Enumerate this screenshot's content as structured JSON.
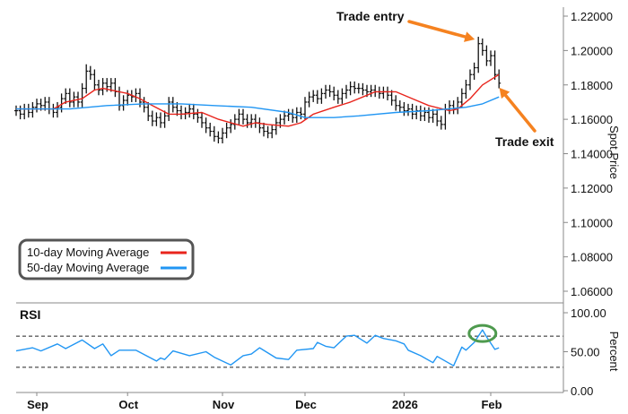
{
  "chart_data": [
    {
      "type": "ohlc-line",
      "yaxis_label": "Spot Price",
      "ylim": [
        1.06,
        1.22
      ],
      "yticks": [
        "1.22000",
        "1.20000",
        "1.18000",
        "1.16000",
        "1.14000",
        "1.12000",
        "1.10000",
        "1.08000",
        "1.06000"
      ],
      "ytick_values": [
        1.22,
        1.2,
        1.18,
        1.16,
        1.14,
        1.12,
        1.1,
        1.08,
        1.06
      ],
      "grid": false,
      "legend_placement": "bottom-left",
      "trading_days": {
        "2025-08": [
          25,
          26,
          27,
          28,
          29
        ],
        "2025-09": [
          1,
          2,
          3,
          4,
          5,
          8,
          9,
          10,
          11,
          12,
          15,
          16,
          17,
          18,
          19,
          22,
          23,
          24,
          25,
          26,
          29,
          30
        ],
        "2025-10": [
          1,
          2,
          3,
          6,
          7,
          8,
          9,
          10,
          13,
          14,
          15,
          16,
          17,
          20,
          21,
          22,
          23,
          24,
          27,
          28,
          29,
          30,
          31
        ],
        "2025-11": [
          3,
          4,
          5,
          6,
          7,
          10,
          11,
          12,
          13,
          14,
          17,
          18,
          19,
          20,
          21,
          24,
          25,
          26,
          27,
          28
        ],
        "2025-12": [
          1,
          2,
          3,
          4,
          5,
          8,
          9,
          10,
          11,
          12,
          15,
          16,
          17,
          18,
          19,
          22,
          23,
          24,
          25,
          26,
          29,
          30,
          31
        ],
        "2026-01": [
          1,
          2,
          5,
          6,
          7,
          8,
          9,
          12,
          13,
          14,
          15,
          16,
          19,
          20,
          21,
          22,
          23,
          26,
          27,
          28,
          29,
          30
        ],
        "2026-02": [
          2,
          3,
          4
        ]
      },
      "close": [
        1.165,
        1.163,
        1.166,
        1.164,
        1.167,
        1.169,
        1.168,
        1.17,
        1.166,
        1.164,
        1.167,
        1.172,
        1.175,
        1.17,
        1.173,
        1.17,
        1.178,
        1.188,
        1.186,
        1.18,
        1.177,
        1.181,
        1.179,
        1.181,
        1.176,
        1.168,
        1.171,
        1.174,
        1.173,
        1.175,
        1.17,
        1.167,
        1.162,
        1.159,
        1.161,
        1.158,
        1.162,
        1.17,
        1.167,
        1.165,
        1.163,
        1.164,
        1.166,
        1.163,
        1.161,
        1.158,
        1.155,
        1.153,
        1.15,
        1.149,
        1.152,
        1.155,
        1.157,
        1.16,
        1.163,
        1.16,
        1.158,
        1.16,
        1.158,
        1.155,
        1.153,
        1.152,
        1.154,
        1.158,
        1.16,
        1.162,
        1.163,
        1.161,
        1.164,
        1.163,
        1.17,
        1.173,
        1.174,
        1.172,
        1.175,
        1.177,
        1.176,
        1.174,
        1.172,
        1.175,
        1.177,
        1.179,
        1.178,
        1.178,
        1.177,
        1.176,
        1.177,
        1.176,
        1.175,
        1.176,
        1.174,
        1.171,
        1.168,
        1.167,
        1.165,
        1.166,
        1.163,
        1.165,
        1.162,
        1.164,
        1.161,
        1.163,
        1.159,
        1.157,
        1.166,
        1.168,
        1.166,
        1.17,
        1.175,
        1.18,
        1.186,
        1.19,
        1.204,
        1.2,
        1.194,
        1.197,
        1.186,
        1.181
      ],
      "high": [
        1.168,
        1.168,
        1.169,
        1.169,
        1.17,
        1.172,
        1.172,
        1.173,
        1.173,
        1.169,
        1.17,
        1.175,
        1.178,
        1.178,
        1.176,
        1.176,
        1.181,
        1.192,
        1.191,
        1.189,
        1.183,
        1.184,
        1.184,
        1.184,
        1.184,
        1.179,
        1.174,
        1.177,
        1.177,
        1.178,
        1.178,
        1.173,
        1.17,
        1.165,
        1.164,
        1.164,
        1.165,
        1.173,
        1.173,
        1.17,
        1.168,
        1.167,
        1.169,
        1.169,
        1.166,
        1.164,
        1.161,
        1.158,
        1.156,
        1.153,
        1.155,
        1.158,
        1.16,
        1.163,
        1.166,
        1.166,
        1.163,
        1.163,
        1.163,
        1.161,
        1.158,
        1.156,
        1.157,
        1.161,
        1.163,
        1.165,
        1.166,
        1.166,
        1.167,
        1.167,
        1.173,
        1.176,
        1.177,
        1.177,
        1.178,
        1.18,
        1.18,
        1.179,
        1.177,
        1.178,
        1.18,
        1.182,
        1.182,
        1.181,
        1.181,
        1.18,
        1.18,
        1.18,
        1.179,
        1.179,
        1.179,
        1.177,
        1.174,
        1.171,
        1.17,
        1.169,
        1.169,
        1.168,
        1.168,
        1.167,
        1.167,
        1.166,
        1.166,
        1.162,
        1.169,
        1.171,
        1.171,
        1.173,
        1.178,
        1.183,
        1.189,
        1.193,
        1.208,
        1.207,
        1.203,
        1.2,
        1.2,
        1.189
      ],
      "low": [
        1.162,
        1.16,
        1.16,
        1.161,
        1.161,
        1.164,
        1.165,
        1.165,
        1.163,
        1.161,
        1.161,
        1.164,
        1.169,
        1.167,
        1.167,
        1.167,
        1.167,
        1.175,
        1.183,
        1.177,
        1.174,
        1.174,
        1.176,
        1.176,
        1.173,
        1.165,
        1.165,
        1.168,
        1.17,
        1.17,
        1.167,
        1.164,
        1.159,
        1.156,
        1.156,
        1.155,
        1.155,
        1.159,
        1.164,
        1.162,
        1.16,
        1.16,
        1.161,
        1.16,
        1.158,
        1.155,
        1.152,
        1.15,
        1.147,
        1.146,
        1.146,
        1.149,
        1.152,
        1.154,
        1.157,
        1.157,
        1.155,
        1.155,
        1.155,
        1.152,
        1.15,
        1.149,
        1.149,
        1.151,
        1.155,
        1.157,
        1.159,
        1.158,
        1.158,
        1.16,
        1.16,
        1.167,
        1.17,
        1.169,
        1.169,
        1.172,
        1.173,
        1.171,
        1.169,
        1.169,
        1.172,
        1.174,
        1.175,
        1.175,
        1.174,
        1.173,
        1.173,
        1.173,
        1.172,
        1.172,
        1.171,
        1.168,
        1.165,
        1.164,
        1.162,
        1.162,
        1.16,
        1.16,
        1.159,
        1.159,
        1.158,
        1.158,
        1.156,
        1.154,
        1.154,
        1.163,
        1.163,
        1.163,
        1.167,
        1.172,
        1.177,
        1.183,
        1.187,
        1.197,
        1.191,
        1.191,
        1.183,
        1.178
      ],
      "series": [
        {
          "name": "10-day Moving Average",
          "color": "#e8241c",
          "points": [
            [
              "2025-08-25",
              1.166
            ],
            [
              "2025-09-05",
              1.166
            ],
            [
              "2025-09-10",
              1.17
            ],
            [
              "2025-09-16",
              1.172
            ],
            [
              "2025-09-19",
              1.177
            ],
            [
              "2025-09-23",
              1.178
            ],
            [
              "2025-10-01",
              1.175
            ],
            [
              "2025-10-06",
              1.172
            ],
            [
              "2025-10-09",
              1.168
            ],
            [
              "2025-10-15",
              1.163
            ],
            [
              "2025-10-20",
              1.163
            ],
            [
              "2025-10-27",
              1.164
            ],
            [
              "2025-10-31",
              1.16
            ],
            [
              "2025-11-10",
              1.156
            ],
            [
              "2025-11-13",
              1.158
            ],
            [
              "2025-11-18",
              1.157
            ],
            [
              "2025-11-25",
              1.156
            ],
            [
              "2025-11-28",
              1.158
            ],
            [
              "2025-12-03",
              1.163
            ],
            [
              "2025-12-10",
              1.167
            ],
            [
              "2025-12-16",
              1.17
            ],
            [
              "2025-12-22",
              1.174
            ],
            [
              "2025-12-24",
              1.176
            ],
            [
              "2025-12-31",
              1.176
            ],
            [
              "2026-01-06",
              1.172
            ],
            [
              "2026-01-12",
              1.168
            ],
            [
              "2026-01-19",
              1.165
            ],
            [
              "2026-01-21",
              1.166
            ],
            [
              "2026-01-26",
              1.172
            ],
            [
              "2026-01-29",
              1.18
            ],
            [
              "2026-02-04",
              1.186
            ]
          ]
        },
        {
          "name": "50-day Moving Average",
          "color": "#2196f3",
          "points": [
            [
              "2025-08-25",
              1.166
            ],
            [
              "2025-09-05",
              1.166
            ],
            [
              "2025-09-11",
              1.166
            ],
            [
              "2025-09-24",
              1.168
            ],
            [
              "2025-10-07",
              1.169
            ],
            [
              "2025-10-20",
              1.169
            ],
            [
              "2025-10-30",
              1.168
            ],
            [
              "2025-11-12",
              1.167
            ],
            [
              "2025-11-25",
              1.164
            ],
            [
              "2025-12-01",
              1.161
            ],
            [
              "2025-12-10",
              1.161
            ],
            [
              "2025-12-18",
              1.162
            ],
            [
              "2025-12-31",
              1.164
            ],
            [
              "2026-01-12",
              1.165
            ],
            [
              "2026-01-23",
              1.167
            ],
            [
              "2026-01-29",
              1.169
            ],
            [
              "2026-02-04",
              1.173
            ]
          ]
        }
      ],
      "annotations": [
        {
          "text": "Trade entry",
          "color": "#f58220",
          "date": "2026-01-28",
          "value": 1.208
        },
        {
          "text": "Trade exit",
          "color": "#f58220",
          "date": "2026-02-03",
          "value": 1.181
        }
      ]
    },
    {
      "type": "line",
      "title": "RSI",
      "yaxis_label": "Percent",
      "ylim": [
        0,
        100
      ],
      "yticks": [
        "100.00",
        "50.00",
        "0.00"
      ],
      "ytick_values": [
        100,
        50,
        0
      ],
      "reference_lines": [
        70,
        30
      ],
      "highlight": {
        "date": "2026-01-29",
        "value": 78,
        "color": "#4e9a4e"
      },
      "series": [
        {
          "color": "#2196f3",
          "points": [
            [
              "2025-08-25",
              51
            ],
            [
              "2025-08-29",
              55
            ],
            [
              "2025-09-02",
              51
            ],
            [
              "2025-09-08",
              60
            ],
            [
              "2025-09-10",
              54
            ],
            [
              "2025-09-16",
              65
            ],
            [
              "2025-09-19",
              54
            ],
            [
              "2025-09-23",
              60
            ],
            [
              "2025-09-25",
              45
            ],
            [
              "2025-09-29",
              52
            ],
            [
              "2025-10-03",
              52
            ],
            [
              "2025-10-10",
              38
            ],
            [
              "2025-10-13",
              42
            ],
            [
              "2025-10-14",
              40
            ],
            [
              "2025-10-16",
              51
            ],
            [
              "2025-10-22",
              45
            ],
            [
              "2025-10-28",
              50
            ],
            [
              "2025-10-30",
              43
            ],
            [
              "2025-11-05",
              33
            ],
            [
              "2025-11-10",
              45
            ],
            [
              "2025-11-12",
              47
            ],
            [
              "2025-11-14",
              55
            ],
            [
              "2025-11-20",
              42
            ],
            [
              "2025-11-25",
              40
            ],
            [
              "2025-11-27",
              52
            ],
            [
              "2025-12-03",
              54
            ],
            [
              "2025-12-04",
              62
            ],
            [
              "2025-12-08",
              57
            ],
            [
              "2025-12-10",
              55
            ],
            [
              "2025-12-15",
              70
            ],
            [
              "2025-12-17",
              71
            ],
            [
              "2025-12-22",
              61
            ],
            [
              "2025-12-24",
              71
            ],
            [
              "2025-12-26",
              67
            ],
            [
              "2025-12-31",
              64
            ],
            [
              "2026-01-02",
              60
            ],
            [
              "2026-01-05",
              52
            ],
            [
              "2026-01-08",
              45
            ],
            [
              "2026-01-13",
              36
            ],
            [
              "2026-01-14",
              44
            ],
            [
              "2026-01-15",
              41
            ],
            [
              "2026-01-20",
              32
            ],
            [
              "2026-01-22",
              56
            ],
            [
              "2026-01-23",
              52
            ],
            [
              "2026-01-27",
              62
            ],
            [
              "2026-01-29",
              78
            ],
            [
              "2026-01-30",
              69
            ],
            [
              "2026-02-03",
              53
            ],
            [
              "2026-02-04",
              55
            ]
          ]
        }
      ]
    }
  ],
  "xaxis": {
    "ticks": [
      {
        "label": "Sep",
        "date": "2025-09-01"
      },
      {
        "label": "Oct",
        "date": "2025-10-01"
      },
      {
        "label": "Nov",
        "date": "2025-11-03"
      },
      {
        "label": "Dec",
        "date": "2025-12-01"
      },
      {
        "label": "2026",
        "date": "2026-01-02"
      },
      {
        "label": "Feb",
        "date": "2026-02-02"
      }
    ]
  },
  "legend": {
    "items": [
      {
        "label": "10-day Moving Average",
        "color": "#e8241c"
      },
      {
        "label": "50-day Moving Average",
        "color": "#2196f3"
      }
    ]
  }
}
